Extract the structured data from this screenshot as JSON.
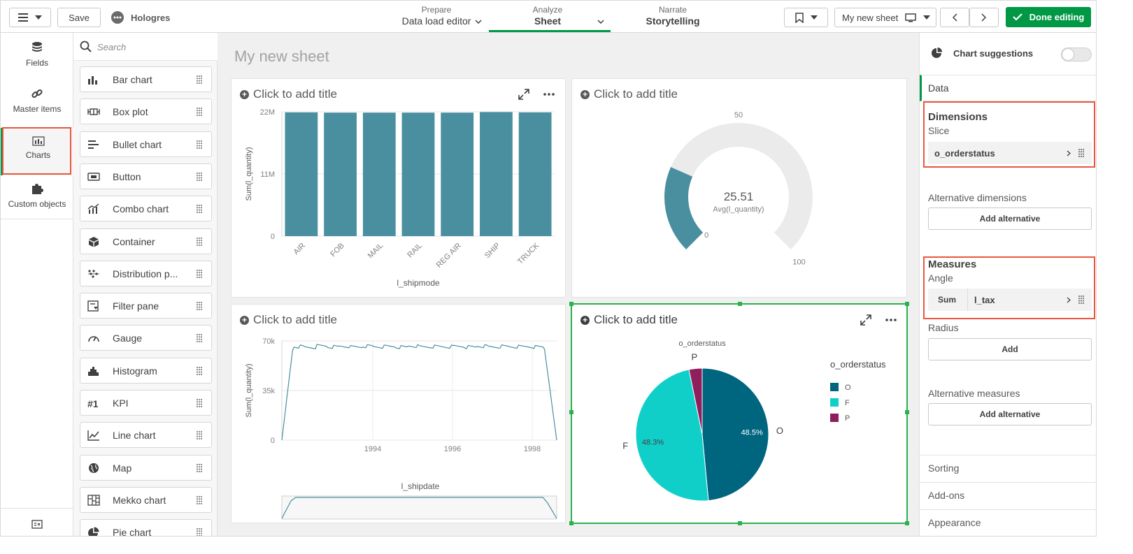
{
  "toolbar": {
    "app_name": "Hologres",
    "save_label": "Save",
    "nav": [
      {
        "sub": "Prepare",
        "main": "Data load editor"
      },
      {
        "sub": "Analyze",
        "main": "Sheet"
      },
      {
        "sub": "Narrate",
        "main": "Storytelling"
      }
    ],
    "sheet_selector": "My new sheet",
    "done_label": "Done editing",
    "accent": "#009845"
  },
  "rail": {
    "items": [
      {
        "label": "Fields",
        "icon": "database-icon"
      },
      {
        "label": "Master items",
        "icon": "link-icon"
      },
      {
        "label": "Charts",
        "icon": "bar-chart-icon"
      },
      {
        "label": "Custom objects",
        "icon": "puzzle-icon"
      }
    ]
  },
  "chart_list": {
    "search_placeholder": "Search",
    "items": [
      {
        "label": "Bar chart",
        "icon": "bar-chart-icon"
      },
      {
        "label": "Box plot",
        "icon": "box-plot-icon"
      },
      {
        "label": "Bullet chart",
        "icon": "bullet-chart-icon"
      },
      {
        "label": "Button",
        "icon": "button-icon"
      },
      {
        "label": "Combo chart",
        "icon": "combo-chart-icon"
      },
      {
        "label": "Container",
        "icon": "container-icon"
      },
      {
        "label": "Distribution p...",
        "icon": "distribution-plot-icon"
      },
      {
        "label": "Filter pane",
        "icon": "filter-pane-icon"
      },
      {
        "label": "Gauge",
        "icon": "gauge-icon"
      },
      {
        "label": "Histogram",
        "icon": "histogram-icon"
      },
      {
        "label": "KPI",
        "icon": "kpi-icon"
      },
      {
        "label": "Line chart",
        "icon": "line-chart-icon"
      },
      {
        "label": "Map",
        "icon": "globe-icon"
      },
      {
        "label": "Mekko chart",
        "icon": "mekko-chart-icon"
      },
      {
        "label": "Pie chart",
        "icon": "pie-chart-icon"
      }
    ]
  },
  "sheet": {
    "title": "My new sheet",
    "card_title": "Click to add title"
  },
  "chart_data": [
    {
      "type": "bar",
      "categories": [
        "AIR",
        "FOB",
        "MAIL",
        "RAIL",
        "REG AIR",
        "SHIP",
        "TRUCK"
      ],
      "values": [
        21900000,
        21850000,
        21850000,
        21850000,
        21850000,
        21950000,
        21900000
      ],
      "xlabel": "l_shipmode",
      "ylabel": "Sum(l_quantity)",
      "yticks": [
        "0",
        "11M",
        "22M"
      ],
      "ylim": [
        0,
        22000000
      ],
      "color": "#4a8fa0"
    },
    {
      "type": "gauge",
      "value": 25.51,
      "value_label": "25.51",
      "measure_label": "Avg(l_quantity)",
      "min": 0,
      "max": 100,
      "min_label": "0",
      "mid_label": "50",
      "max_label": "100",
      "color": "#4a8fa0"
    },
    {
      "type": "line",
      "xlabel": "l_shipdate",
      "ylabel": "Sum(l_quantity)",
      "yticks": [
        "0",
        "35k",
        "70k"
      ],
      "ylim": [
        0,
        70000
      ],
      "xticks": [
        "1994",
        "1996",
        "1998"
      ],
      "series": [
        {
          "values": [
            0,
            65000,
            66000,
            65500,
            66500,
            65800,
            66200,
            65700,
            66300,
            65900,
            66100,
            65600,
            66400,
            65800,
            66000,
            65900,
            66200,
            65700,
            66300,
            65800,
            66100,
            65900,
            66000,
            65700,
            66200,
            0
          ]
        }
      ],
      "color": "#4a8fa0"
    },
    {
      "type": "pie",
      "title": "o_orderstatus",
      "legend_title": "o_orderstatus",
      "legend_position": "right",
      "slices": [
        {
          "label": "O",
          "value": 48.5,
          "value_label": "48.5%",
          "color": "#00657f"
        },
        {
          "label": "F",
          "value": 48.3,
          "value_label": "48.3%",
          "color": "#10cfc9"
        },
        {
          "label": "P",
          "value": 3.2,
          "value_label": "",
          "color": "#8e1f5c"
        }
      ]
    }
  ],
  "props": {
    "suggestions_label": "Chart suggestions",
    "data_tab": "Data",
    "dimensions_heading": "Dimensions",
    "dimension_role": "Slice",
    "dimension_field": "o_orderstatus",
    "alt_dimensions_label": "Alternative dimensions",
    "add_alternative_label": "Add alternative",
    "measures_heading": "Measures",
    "measure_role": "Angle",
    "measure_agg": "Sum",
    "measure_field": "l_tax",
    "radius_label": "Radius",
    "add_label": "Add",
    "alt_measures_label": "Alternative measures",
    "sections": [
      "Sorting",
      "Add-ons",
      "Appearance"
    ]
  }
}
